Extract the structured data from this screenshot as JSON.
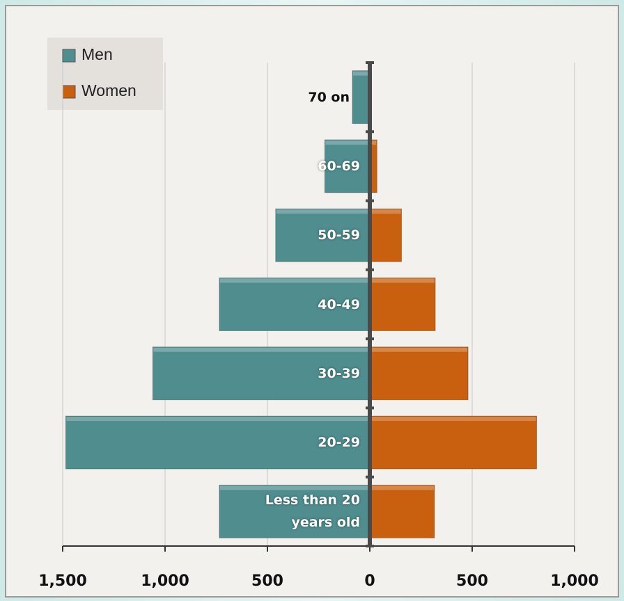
{
  "chart_data": {
    "type": "population-pyramid",
    "categories": [
      "Less than 20 years old",
      "20-29",
      "30-39",
      "40-49",
      "50-59",
      "60-69",
      "70 on"
    ],
    "series": [
      {
        "name": "Men",
        "color": "#4f8d8f",
        "values": [
          -735,
          -1485,
          -1060,
          -735,
          -460,
          -220,
          -85
        ]
      },
      {
        "name": "Women",
        "color": "#c8600f",
        "values": [
          316,
          815,
          480,
          320,
          155,
          35,
          5
        ]
      }
    ],
    "xlim": [
      -1500,
      1000
    ],
    "xticks": [
      {
        "value": -1500,
        "label": "1,500"
      },
      {
        "value": -1000,
        "label": "1,000"
      },
      {
        "value": -500,
        "label": "500"
      },
      0,
      500,
      {
        "value": 1000,
        "label": "1,000"
      }
    ],
    "grid": true,
    "legend": "top-left"
  }
}
